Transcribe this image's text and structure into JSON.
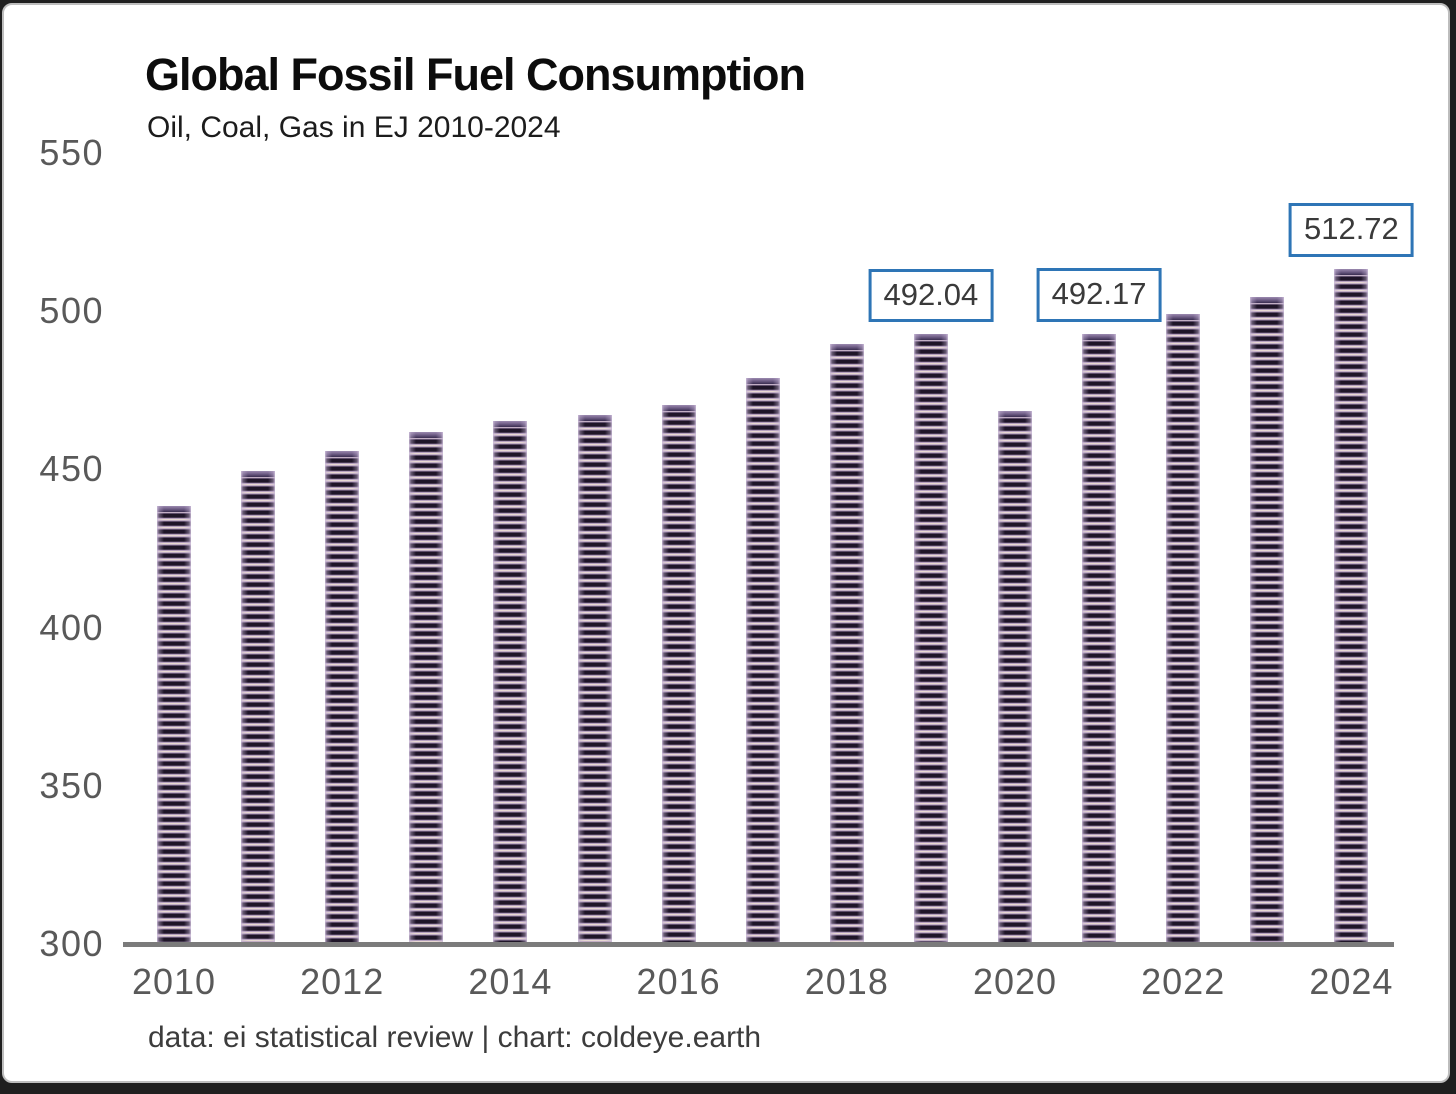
{
  "chart_data": {
    "type": "bar",
    "title": "Global Fossil Fuel Consumption",
    "subtitle": "Oil, Coal, Gas in EJ 2010-2024",
    "x": [
      2010,
      2011,
      2012,
      2013,
      2014,
      2015,
      2016,
      2017,
      2018,
      2019,
      2020,
      2021,
      2022,
      2023,
      2024
    ],
    "values": [
      437.9,
      448.8,
      455.1,
      461.3,
      464.6,
      466.6,
      469.7,
      478.4,
      489.0,
      492.04,
      467.9,
      492.17,
      498.5,
      503.9,
      512.72
    ],
    "ylim": [
      300,
      550
    ],
    "yticks": [
      550,
      500,
      450,
      400,
      350,
      300
    ],
    "xticks": [
      2010,
      2012,
      2014,
      2016,
      2018,
      2020,
      2022,
      2024
    ],
    "grid": false,
    "legend": null,
    "annotations": [
      {
        "x": 2019,
        "label": "492.04"
      },
      {
        "x": 2021,
        "label": "492.17"
      },
      {
        "x": 2024,
        "label": "512.72"
      }
    ],
    "footer": "data: ei statistical review | chart: coldeye.earth",
    "colors": {
      "bar_stripe_dark": "#1f1528",
      "bar_stripe_light": "#f6e9d7",
      "bar_stripe_mauve": "#ab94bc",
      "bar_edge_highlight": "#cbbcd8",
      "annotation_border": "#2e75b6",
      "annotation_text": "#3a3a3a",
      "axis_line": "#7b7b7b",
      "tick_text": "#595959",
      "title_text": "#0c0c0c",
      "footer_text": "#3c3c3c",
      "card_background": "#ffffff",
      "card_border": "#bdbdbd"
    }
  }
}
